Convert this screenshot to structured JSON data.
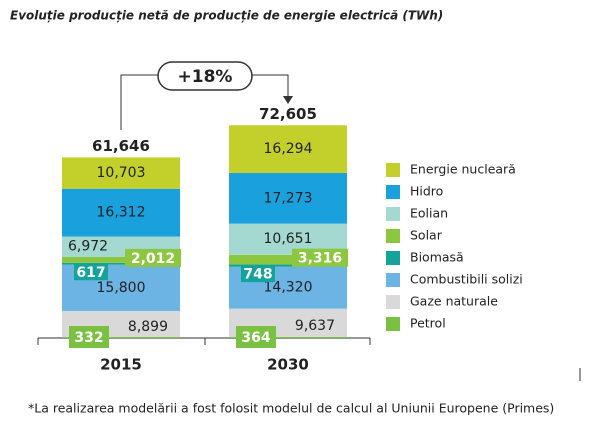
{
  "chart_data": {
    "type": "stacked-bar",
    "title": "Evoluție producție netă de producție de energie electrică (TWh)",
    "categories": [
      "2015",
      "2030"
    ],
    "series": [
      {
        "name": "Petrol",
        "color": "#7ac143",
        "values": [
          332,
          364
        ],
        "value_labels": [
          "332",
          "364"
        ]
      },
      {
        "name": "Gaze naturale",
        "color": "#d9d9d9",
        "values": [
          8899,
          9637
        ],
        "value_labels": [
          "8,899",
          "9,637"
        ]
      },
      {
        "name": "Combustibili solizi",
        "color": "#6cb4e4",
        "values": [
          15800,
          14320
        ],
        "value_labels": [
          "15,800",
          "14,320"
        ]
      },
      {
        "name": "Biomasă",
        "color": "#14a39a",
        "values": [
          617,
          748
        ],
        "value_labels": [
          "617",
          "748"
        ]
      },
      {
        "name": "Solar",
        "color": "#8dc63f",
        "values": [
          2012,
          3316
        ],
        "value_labels": [
          "2,012",
          "3,316"
        ]
      },
      {
        "name": "Eolian",
        "color": "#a3d9d0",
        "values": [
          6972,
          10651
        ],
        "value_labels": [
          "6,972",
          "10,651"
        ]
      },
      {
        "name": "Hidro",
        "color": "#1aa0dc",
        "values": [
          16312,
          17273
        ],
        "value_labels": [
          "16,312",
          "17,273"
        ]
      },
      {
        "name": "Energie nucleară",
        "color": "#c3cf2a",
        "values": [
          10703,
          16294
        ],
        "value_labels": [
          "10,703",
          "16,294"
        ]
      }
    ],
    "totals": {
      "values": [
        61646,
        72605
      ],
      "value_labels": [
        "61,646",
        "72,605"
      ]
    },
    "annotation": "+18%",
    "footnote": "*La realizarea modelării a fost folosit modelul de calcul al Uniunii Europene (Primes)"
  }
}
